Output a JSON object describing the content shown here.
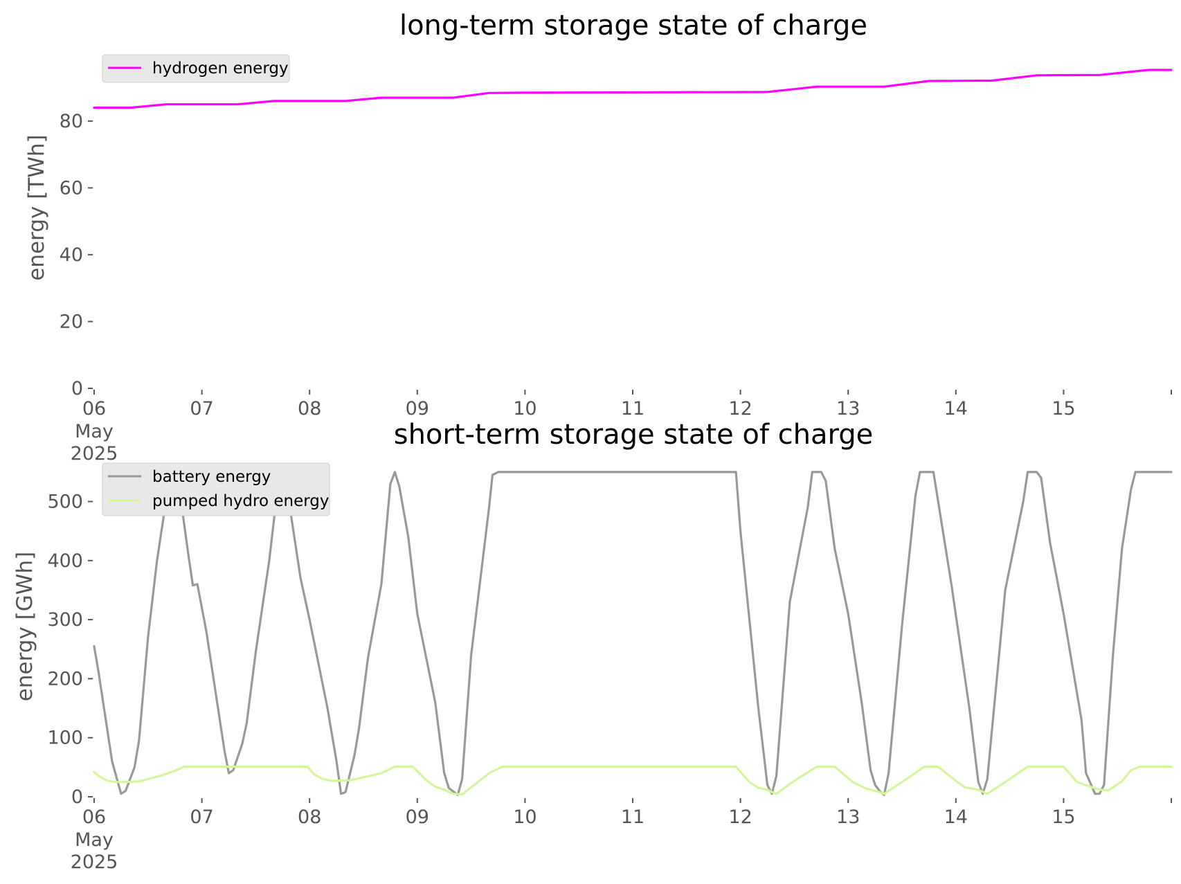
{
  "chart_data": [
    {
      "type": "line",
      "title": "long-term storage state of charge",
      "xlabel": "",
      "ylabel": "energy [TWh]",
      "x_ticks": [
        "06",
        "07",
        "08",
        "09",
        "10",
        "11",
        "12",
        "13",
        "14",
        "15"
      ],
      "x_tick_sub": [
        "May",
        "2025"
      ],
      "x_range": [
        "2025-05-06 00:00",
        "2025-05-16 00:00"
      ],
      "ylim": [
        0,
        98
      ],
      "y_ticks": [
        "0",
        "20",
        "40",
        "60",
        "80"
      ],
      "y_tick_values": [
        0,
        20,
        40,
        60,
        80
      ],
      "grid": false,
      "legend_position": "top-left",
      "series": [
        {
          "name": "hydrogen energy",
          "color": "#ff00ff",
          "points": [
            [
              "05-06 00:00",
              84.0
            ],
            [
              "05-06 08:00",
              84.0
            ],
            [
              "05-06 16:00",
              85.0
            ],
            [
              "05-07 08:00",
              85.0
            ],
            [
              "05-07 16:00",
              86.0
            ],
            [
              "05-08 08:00",
              86.0
            ],
            [
              "05-08 16:00",
              87.0
            ],
            [
              "05-09 08:00",
              87.0
            ],
            [
              "05-09 16:00",
              88.4
            ],
            [
              "05-10 00:00",
              88.5
            ],
            [
              "05-12 06:00",
              88.7
            ],
            [
              "05-12 17:00",
              90.3
            ],
            [
              "05-13 08:00",
              90.3
            ],
            [
              "05-13 18:00",
              92.0
            ],
            [
              "05-14 08:00",
              92.1
            ],
            [
              "05-14 18:00",
              93.7
            ],
            [
              "05-15 08:00",
              93.8
            ],
            [
              "05-15 19:00",
              95.3
            ],
            [
              "05-16 00:00",
              95.3
            ]
          ]
        }
      ]
    },
    {
      "type": "line",
      "title": "short-term storage state of charge",
      "xlabel": "",
      "ylabel": "energy [GWh]",
      "x_ticks": [
        "06",
        "07",
        "08",
        "09",
        "10",
        "11",
        "12",
        "13",
        "14",
        "15"
      ],
      "x_tick_sub": [
        "May",
        "2025"
      ],
      "x_range": [
        "2025-05-06 00:00",
        "2025-05-16 00:00"
      ],
      "ylim": [
        0,
        551
      ],
      "y_ticks": [
        "0",
        "100",
        "200",
        "300",
        "400",
        "500"
      ],
      "y_tick_values": [
        0,
        100,
        200,
        300,
        400,
        500
      ],
      "grid": false,
      "legend_position": "top-left",
      "series": [
        {
          "name": "battery energy",
          "color": "#999999",
          "points": [
            [
              "05-06 00:00",
              255
            ],
            [
              "05-06 01:00",
              210
            ],
            [
              "05-06 04:00",
              60
            ],
            [
              "05-06 06:00",
              5
            ],
            [
              "05-06 07:00",
              10
            ],
            [
              "05-06 09:00",
              50
            ],
            [
              "05-06 10:00",
              95
            ],
            [
              "05-06 12:00",
              270
            ],
            [
              "05-06 14:00",
              400
            ],
            [
              "05-06 16:00",
              500
            ],
            [
              "05-06 18:00",
              550
            ],
            [
              "05-06 19:00",
              520
            ],
            [
              "05-06 21:00",
              410
            ],
            [
              "05-06 22:00",
              358
            ],
            [
              "05-06 23:00",
              360
            ],
            [
              "05-07 01:00",
              280
            ],
            [
              "05-07 05:00",
              80
            ],
            [
              "05-07 06:00",
              40
            ],
            [
              "05-07 07:00",
              45
            ],
            [
              "05-07 09:00",
              90
            ],
            [
              "05-07 10:00",
              125
            ],
            [
              "05-07 12:00",
              245
            ],
            [
              "05-07 15:00",
              400
            ],
            [
              "05-07 17:00",
              530
            ],
            [
              "05-07 18:00",
              550
            ],
            [
              "05-07 19:00",
              520
            ],
            [
              "05-07 22:00",
              370
            ],
            [
              "05-08 00:00",
              300
            ],
            [
              "05-08 04:00",
              150
            ],
            [
              "05-08 06:00",
              60
            ],
            [
              "05-08 07:00",
              5
            ],
            [
              "05-08 08:00",
              8
            ],
            [
              "05-08 10:00",
              70
            ],
            [
              "05-08 11:00",
              115
            ],
            [
              "05-08 13:00",
              235
            ],
            [
              "05-08 16:00",
              360
            ],
            [
              "05-08 18:00",
              530
            ],
            [
              "05-08 19:00",
              550
            ],
            [
              "05-08 20:00",
              525
            ],
            [
              "05-08 22:00",
              440
            ],
            [
              "05-09 00:00",
              310
            ],
            [
              "05-09 04:00",
              160
            ],
            [
              "05-09 06:00",
              40
            ],
            [
              "05-09 07:00",
              15
            ],
            [
              "05-09 09:00",
              3
            ],
            [
              "05-09 10:00",
              30
            ],
            [
              "05-09 12:00",
              240
            ],
            [
              "05-09 16:00",
              490
            ],
            [
              "05-09 16:45",
              545
            ],
            [
              "05-09 18:00",
              550
            ],
            [
              "05-11 23:00",
              550
            ],
            [
              "05-12 00:00",
              450
            ],
            [
              "05-12 04:00",
              150
            ],
            [
              "05-12 06:00",
              20
            ],
            [
              "05-12 07:00",
              5
            ],
            [
              "05-12 08:00",
              35
            ],
            [
              "05-12 11:00",
              330
            ],
            [
              "05-12 15:00",
              490
            ],
            [
              "05-12 16:00",
              550
            ],
            [
              "05-12 18:00",
              550
            ],
            [
              "05-12 19:00",
              535
            ],
            [
              "05-12 21:00",
              420
            ],
            [
              "05-13 00:00",
              310
            ],
            [
              "05-13 03:00",
              160
            ],
            [
              "05-13 05:00",
              45
            ],
            [
              "05-13 06:00",
              20
            ],
            [
              "05-13 07:00",
              10
            ],
            [
              "05-13 08:00",
              3
            ],
            [
              "05-13 09:00",
              40
            ],
            [
              "05-13 12:00",
              290
            ],
            [
              "05-13 15:00",
              510
            ],
            [
              "05-13 16:00",
              550
            ],
            [
              "05-13 19:00",
              550
            ],
            [
              "05-13 23:00",
              360
            ],
            [
              "05-14 03:00",
              150
            ],
            [
              "05-14 05:00",
              25
            ],
            [
              "05-14 06:00",
              5
            ],
            [
              "05-14 07:00",
              30
            ],
            [
              "05-14 11:00",
              350
            ],
            [
              "05-14 15:00",
              500
            ],
            [
              "05-14 16:00",
              550
            ],
            [
              "05-14 18:00",
              550
            ],
            [
              "05-14 19:00",
              540
            ],
            [
              "05-14 21:00",
              430
            ],
            [
              "05-15 00:00",
              310
            ],
            [
              "05-15 04:00",
              130
            ],
            [
              "05-15 05:00",
              40
            ],
            [
              "05-15 07:00",
              5
            ],
            [
              "05-15 08:00",
              5
            ],
            [
              "05-15 09:00",
              20
            ],
            [
              "05-15 11:00",
              240
            ],
            [
              "05-15 13:00",
              420
            ],
            [
              "05-15 15:00",
              520
            ],
            [
              "05-15 16:00",
              550
            ],
            [
              "05-16 00:00",
              550
            ]
          ]
        },
        {
          "name": "pumped hydro energy",
          "color": "#d4f69a",
          "points": [
            [
              "05-06 00:00",
              42
            ],
            [
              "05-06 01:00",
              35
            ],
            [
              "05-06 03:00",
              27
            ],
            [
              "05-06 05:00",
              25
            ],
            [
              "05-06 07:00",
              25
            ],
            [
              "05-06 10:00",
              26
            ],
            [
              "05-06 12:00",
              30
            ],
            [
              "05-06 15:00",
              36
            ],
            [
              "05-06 18:00",
              44
            ],
            [
              "05-06 20:00",
              51
            ],
            [
              "05-07 23:30",
              51
            ],
            [
              "05-08 01:00",
              38
            ],
            [
              "05-08 03:00",
              30
            ],
            [
              "05-08 05:00",
              27
            ],
            [
              "05-08 09:00",
              28
            ],
            [
              "05-08 12:00",
              33
            ],
            [
              "05-08 16:00",
              40
            ],
            [
              "05-08 19:00",
              51
            ],
            [
              "05-08 23:00",
              51
            ],
            [
              "05-09 02:00",
              28
            ],
            [
              "05-09 04:00",
              17
            ],
            [
              "05-09 06:00",
              12
            ],
            [
              "05-09 08:00",
              5
            ],
            [
              "05-09 10:00",
              4
            ],
            [
              "05-09 12:00",
              16
            ],
            [
              "05-09 16:00",
              40
            ],
            [
              "05-09 19:00",
              51
            ],
            [
              "05-11 23:00",
              51
            ],
            [
              "05-12 02:00",
              25
            ],
            [
              "05-12 04:00",
              15
            ],
            [
              "05-12 06:00",
              12
            ],
            [
              "05-12 07:00",
              8
            ],
            [
              "05-12 08:00",
              5
            ],
            [
              "05-12 12:00",
              27
            ],
            [
              "05-12 17:00",
              51
            ],
            [
              "05-12 21:00",
              51
            ],
            [
              "05-13 01:00",
              25
            ],
            [
              "05-13 04:00",
              14
            ],
            [
              "05-13 07:00",
              8
            ],
            [
              "05-13 08:00",
              5
            ],
            [
              "05-13 13:00",
              30
            ],
            [
              "05-13 17:00",
              51
            ],
            [
              "05-13 20:00",
              51
            ],
            [
              "05-14 00:00",
              27
            ],
            [
              "05-14 02:00",
              16
            ],
            [
              "05-14 05:00",
              12
            ],
            [
              "05-14 07:00",
              5
            ],
            [
              "05-14 12:00",
              30
            ],
            [
              "05-14 16:00",
              51
            ],
            [
              "05-15 00:00",
              51
            ],
            [
              "05-15 03:00",
              25
            ],
            [
              "05-15 06:00",
              17
            ],
            [
              "05-15 08:00",
              12
            ],
            [
              "05-15 10:00",
              11
            ],
            [
              "05-15 13:00",
              26
            ],
            [
              "05-15 15:00",
              45
            ],
            [
              "05-15 17:00",
              51
            ],
            [
              "05-16 00:00",
              51
            ]
          ]
        }
      ]
    }
  ]
}
